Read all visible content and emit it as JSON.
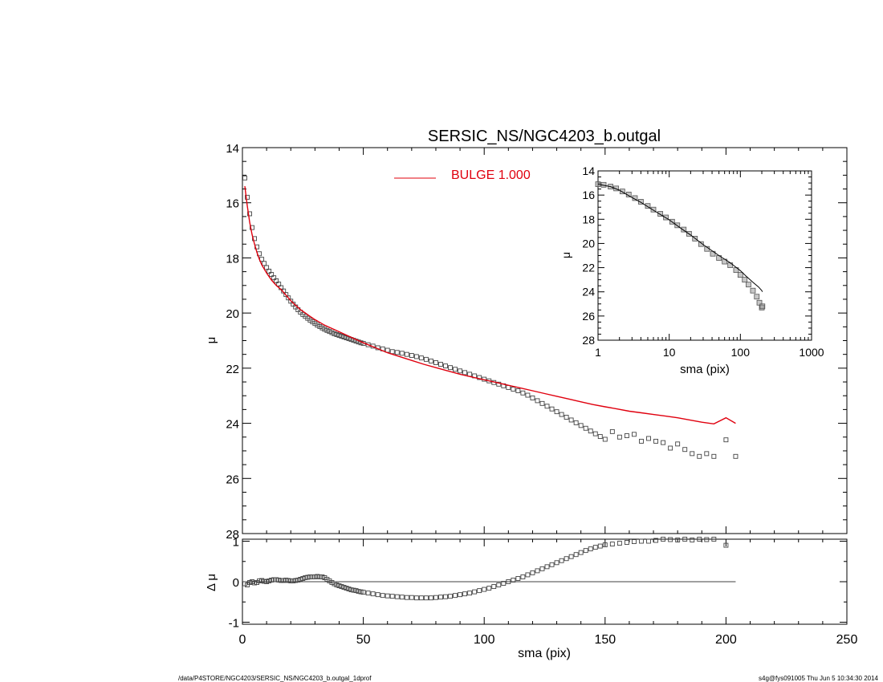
{
  "chart_data": [
    {
      "panel": "main",
      "type": "scatter",
      "title": "SERSIC_NS/NGC4203_b.outgal",
      "ylabel": "μ",
      "xlim": [
        0,
        250
      ],
      "ylim": [
        28,
        14
      ],
      "yticks": [
        "14",
        "16",
        "18",
        "20",
        "22",
        "24",
        "26",
        "28"
      ],
      "legend": {
        "placement": "top",
        "entries": [
          {
            "label": "BULGE  1.000",
            "color": "#e0000e"
          }
        ]
      },
      "series": [
        {
          "kind": "squares",
          "x": [
            1,
            2,
            3,
            4,
            5,
            6,
            7,
            8,
            9,
            10,
            11,
            12,
            13,
            14,
            15,
            16,
            17,
            18,
            19,
            20,
            21,
            22,
            23,
            24,
            25,
            26,
            27,
            28,
            29,
            30,
            31,
            32,
            33,
            34,
            35,
            36,
            37,
            38,
            39,
            40,
            41,
            42,
            43,
            44,
            45,
            46,
            47,
            48,
            49,
            50,
            52,
            54,
            56,
            58,
            60,
            62,
            64,
            66,
            68,
            70,
            72,
            74,
            76,
            78,
            80,
            82,
            84,
            86,
            88,
            90,
            92,
            94,
            96,
            98,
            100,
            102,
            104,
            106,
            108,
            110,
            112,
            114,
            116,
            118,
            120,
            122,
            124,
            126,
            128,
            130,
            132,
            134,
            136,
            138,
            140,
            142,
            144,
            146,
            148,
            150,
            153,
            156,
            159,
            162,
            165,
            168,
            171,
            174,
            177,
            180,
            183,
            186,
            189,
            192,
            195,
            200,
            204
          ],
          "y": [
            15.1,
            15.8,
            16.4,
            16.9,
            17.3,
            17.6,
            17.85,
            18.05,
            18.2,
            18.35,
            18.48,
            18.6,
            18.72,
            18.83,
            18.95,
            19.08,
            19.2,
            19.33,
            19.45,
            19.57,
            19.68,
            19.78,
            19.88,
            19.97,
            20.05,
            20.12,
            20.19,
            20.26,
            20.32,
            20.38,
            20.44,
            20.49,
            20.54,
            20.59,
            20.63,
            20.67,
            20.71,
            20.75,
            20.78,
            20.81,
            20.84,
            20.87,
            20.9,
            20.93,
            20.96,
            20.99,
            21.02,
            21.05,
            21.08,
            21.1,
            21.15,
            21.2,
            21.26,
            21.3,
            21.35,
            21.4,
            21.43,
            21.46,
            21.5,
            21.54,
            21.58,
            21.63,
            21.68,
            21.74,
            21.8,
            21.86,
            21.92,
            21.98,
            22.04,
            22.1,
            22.16,
            22.22,
            22.28,
            22.34,
            22.4,
            22.46,
            22.52,
            22.58,
            22.64,
            22.7,
            22.76,
            22.82,
            22.9,
            22.98,
            23.08,
            23.18,
            23.28,
            23.38,
            23.48,
            23.58,
            23.68,
            23.78,
            23.88,
            23.98,
            24.08,
            24.18,
            24.28,
            24.38,
            24.48,
            24.58,
            24.3,
            24.5,
            24.45,
            24.4,
            24.65,
            24.55,
            24.65,
            24.7,
            24.9,
            24.75,
            24.95,
            25.1,
            25.2,
            25.1,
            25.2,
            24.6,
            25.2
          ]
        },
        {
          "kind": "line",
          "color": "#e0000e",
          "x": [
            1,
            2,
            3,
            4,
            5,
            6,
            7,
            8,
            9,
            10,
            12,
            14,
            16,
            18,
            20,
            22,
            24,
            26,
            28,
            30,
            32,
            34,
            36,
            38,
            40,
            45,
            50,
            55,
            60,
            65,
            70,
            75,
            80,
            85,
            90,
            95,
            100,
            105,
            110,
            115,
            120,
            125,
            130,
            135,
            140,
            145,
            150,
            155,
            160,
            165,
            170,
            175,
            180,
            185,
            190,
            195,
            200,
            204
          ],
          "y": [
            15.4,
            16.1,
            16.7,
            17.15,
            17.5,
            17.8,
            18.05,
            18.25,
            18.4,
            18.55,
            18.8,
            19.0,
            19.15,
            19.35,
            19.55,
            19.72,
            19.88,
            20.0,
            20.12,
            20.24,
            20.34,
            20.44,
            20.52,
            20.6,
            20.68,
            20.88,
            21.08,
            21.26,
            21.44,
            21.58,
            21.72,
            21.86,
            21.98,
            22.1,
            22.22,
            22.32,
            22.42,
            22.52,
            22.62,
            22.72,
            22.82,
            22.92,
            23.02,
            23.12,
            23.22,
            23.32,
            23.4,
            23.48,
            23.56,
            23.62,
            23.68,
            23.74,
            23.8,
            23.88,
            23.96,
            24.02,
            23.8,
            24.0
          ]
        }
      ]
    },
    {
      "panel": "inset",
      "type": "scatter",
      "xlabel": "sma (pix)",
      "ylabel": "μ",
      "xscale": "log",
      "xlim": [
        1,
        1000
      ],
      "ylim": [
        28,
        14
      ],
      "xticks": [
        "1",
        "10",
        "100",
        "1000"
      ],
      "yticks": [
        "14",
        "16",
        "18",
        "20",
        "22",
        "24",
        "26",
        "28"
      ],
      "series": [
        {
          "kind": "squares",
          "x": [
            1,
            1.2,
            1.5,
            1.8,
            2.2,
            2.7,
            3.3,
            4,
            5,
            6,
            7.5,
            9,
            11,
            13,
            16,
            19,
            23,
            28,
            34,
            41,
            50,
            60,
            72,
            87,
            100,
            115,
            130,
            150,
            170,
            185,
            200,
            204
          ],
          "y": [
            15.1,
            15.15,
            15.3,
            15.45,
            15.7,
            15.95,
            16.25,
            16.55,
            16.9,
            17.2,
            17.55,
            17.85,
            18.2,
            18.5,
            18.85,
            19.2,
            19.6,
            20.05,
            20.45,
            20.85,
            21.2,
            21.5,
            21.8,
            22.2,
            22.6,
            23.0,
            23.4,
            23.9,
            24.4,
            24.9,
            25.3,
            25.2
          ]
        },
        {
          "kind": "line",
          "color": "#000000",
          "x": [
            1,
            1.5,
            2,
            3,
            4,
            6,
            8,
            10,
            15,
            20,
            30,
            40,
            50,
            60,
            70,
            80,
            100,
            120,
            150,
            180,
            200,
            204
          ],
          "y": [
            15.1,
            15.3,
            15.6,
            16.2,
            16.6,
            17.25,
            17.7,
            18.05,
            18.8,
            19.3,
            20.1,
            20.6,
            21.0,
            21.3,
            21.55,
            21.8,
            22.25,
            22.7,
            23.2,
            23.6,
            23.9,
            24.0
          ]
        }
      ]
    },
    {
      "panel": "residual",
      "type": "scatter",
      "xlabel": "sma (pix)",
      "ylabel": "Δ μ",
      "xlim": [
        0,
        250
      ],
      "ylim": [
        -1.05,
        1.05
      ],
      "xticks": [
        "0",
        "50",
        "100",
        "150",
        "200",
        "250"
      ],
      "yticks": [
        "-1",
        "0",
        "1"
      ],
      "zero_line": true,
      "series": [
        {
          "kind": "squares",
          "x": [
            1,
            2,
            3,
            4,
            5,
            6,
            7,
            8,
            9,
            10,
            11,
            12,
            13,
            14,
            15,
            16,
            17,
            18,
            19,
            20,
            21,
            22,
            23,
            24,
            25,
            26,
            27,
            28,
            29,
            30,
            31,
            32,
            33,
            34,
            35,
            36,
            37,
            38,
            39,
            40,
            41,
            42,
            43,
            44,
            45,
            46,
            47,
            48,
            49,
            50,
            52,
            54,
            56,
            58,
            60,
            62,
            64,
            66,
            68,
            70,
            72,
            74,
            76,
            78,
            80,
            82,
            84,
            86,
            88,
            90,
            92,
            94,
            96,
            98,
            100,
            102,
            104,
            106,
            108,
            110,
            112,
            114,
            116,
            118,
            120,
            122,
            124,
            126,
            128,
            130,
            132,
            134,
            136,
            138,
            140,
            142,
            144,
            146,
            148,
            150,
            153,
            156,
            159,
            162,
            165,
            168,
            171,
            174,
            177,
            180,
            183,
            186,
            189,
            192,
            195,
            200
          ],
          "y": [
            -0.05,
            -0.08,
            -0.02,
            0.0,
            -0.03,
            -0.02,
            0.02,
            0.03,
            0.01,
            0.0,
            0.02,
            0.04,
            0.05,
            0.05,
            0.04,
            0.03,
            0.03,
            0.04,
            0.03,
            0.02,
            0.02,
            0.03,
            0.04,
            0.06,
            0.08,
            0.1,
            0.11,
            0.12,
            0.12,
            0.12,
            0.13,
            0.12,
            0.12,
            0.1,
            0.06,
            0.02,
            -0.02,
            -0.05,
            -0.08,
            -0.1,
            -0.12,
            -0.14,
            -0.16,
            -0.18,
            -0.2,
            -0.21,
            -0.22,
            -0.24,
            -0.25,
            -0.26,
            -0.28,
            -0.3,
            -0.32,
            -0.34,
            -0.35,
            -0.36,
            -0.37,
            -0.38,
            -0.39,
            -0.39,
            -0.4,
            -0.4,
            -0.4,
            -0.4,
            -0.39,
            -0.38,
            -0.37,
            -0.36,
            -0.34,
            -0.32,
            -0.3,
            -0.28,
            -0.25,
            -0.22,
            -0.19,
            -0.16,
            -0.12,
            -0.08,
            -0.04,
            0.0,
            0.04,
            0.08,
            0.12,
            0.17,
            0.22,
            0.27,
            0.32,
            0.37,
            0.42,
            0.47,
            0.52,
            0.57,
            0.62,
            0.67,
            0.72,
            0.77,
            0.81,
            0.85,
            0.88,
            0.91,
            0.93,
            0.95,
            0.97,
            0.99,
            1.0,
            1.0,
            1.02,
            1.05,
            1.04,
            1.03,
            1.05,
            1.03,
            1.05,
            1.04,
            1.05,
            0.9
          ]
        }
      ]
    }
  ],
  "figure": {
    "main_xticks": [
      "0",
      "50",
      "100",
      "150",
      "200",
      "250"
    ],
    "footer_left": "/data/P4STORE/NGC4203/SERSIC_NS/NGC4203_b.outgal_1dprof",
    "footer_right": "s4g@fys091005  Thu Jun  5 10:34:30 2014"
  }
}
